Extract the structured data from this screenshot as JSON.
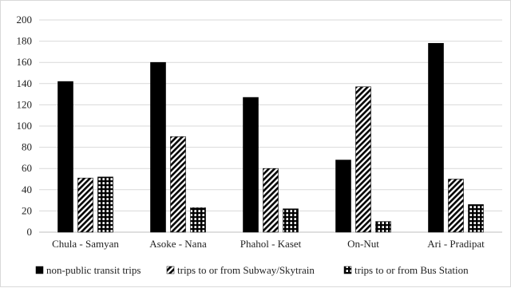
{
  "chart_data": {
    "type": "bar",
    "categories": [
      "Chula - Samyan",
      "Asoke - Nana",
      "Phahol - Kaset",
      "On-Nut",
      "Ari - Pradipat"
    ],
    "series": [
      {
        "name": "non-public transit trips",
        "values": [
          142,
          160,
          127,
          68,
          178
        ],
        "pattern": "solid"
      },
      {
        "name": "trips to or from Subway/Skytrain",
        "values": [
          51,
          90,
          60,
          137,
          50
        ],
        "pattern": "diagonal"
      },
      {
        "name": "trips to or from Bus Station",
        "values": [
          52,
          23,
          22,
          10,
          26
        ],
        "pattern": "grid"
      }
    ],
    "y_ticks": [
      "0",
      "20",
      "40",
      "60",
      "80",
      "100",
      "120",
      "140",
      "160",
      "180",
      "200"
    ],
    "ylim": [
      0,
      200
    ],
    "grid": true,
    "legend_position": "bottom",
    "colors": {
      "bar": "#000000",
      "grid": "#d9d9d9",
      "text": "#222222"
    }
  }
}
